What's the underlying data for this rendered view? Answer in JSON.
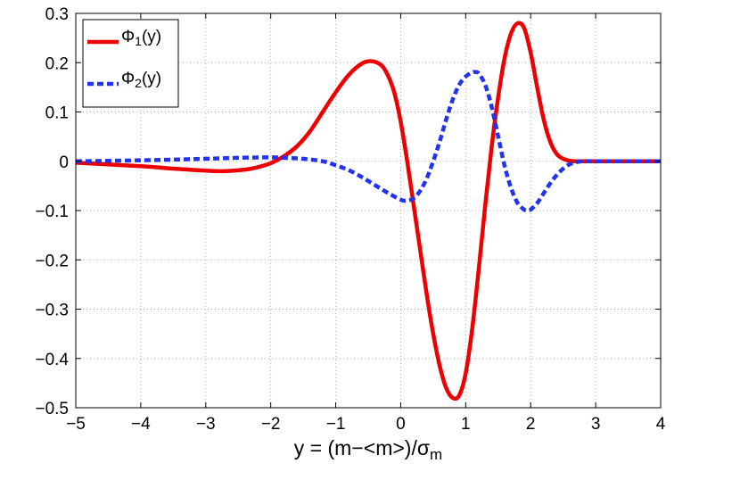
{
  "chart_data": {
    "type": "line",
    "title": "",
    "xlabel": {
      "main": "y = (m−<m>)/σ",
      "sub": "m"
    },
    "ylabel": "",
    "xlim": [
      -5,
      4
    ],
    "ylim": [
      -0.5,
      0.3
    ],
    "grid": true,
    "legend_position": "top-left",
    "x_ticks": [
      -5,
      -4,
      -3,
      -2,
      -1,
      0,
      1,
      2,
      3,
      4
    ],
    "x_tick_labels": [
      "−5",
      "−4",
      "−3",
      "−2",
      "−1",
      "0",
      "1",
      "2",
      "3",
      "4"
    ],
    "y_ticks": [
      0.3,
      0.2,
      0.1,
      0,
      -0.1,
      -0.2,
      -0.3,
      -0.4,
      -0.5
    ],
    "y_tick_labels": [
      "0.3",
      "0.2",
      "0.1",
      "0",
      "−0.1",
      "−0.2",
      "−0.3",
      "−0.4",
      "−0.5"
    ],
    "series": [
      {
        "name": {
          "main": "Φ",
          "sub": "1",
          "suffix": "(y)"
        },
        "color": "#ee0000",
        "style": "solid",
        "x": [
          -5,
          -4,
          -3.5,
          -3,
          -2.7,
          -2.4,
          -2.2,
          -2,
          -1.8,
          -1.6,
          -1.4,
          -1.2,
          -1,
          -0.8,
          -0.6,
          -0.45,
          -0.3,
          -0.2,
          -0.1,
          0,
          0.1,
          0.2,
          0.3,
          0.4,
          0.5,
          0.6,
          0.7,
          0.8,
          0.9,
          1.0,
          1.1,
          1.2,
          1.3,
          1.4,
          1.5,
          1.6,
          1.7,
          1.8,
          1.9,
          2.0,
          2.1,
          2.2,
          2.3,
          2.4,
          2.5,
          2.6,
          2.7,
          2.8,
          3,
          4
        ],
        "y": [
          -0.003,
          -0.01,
          -0.015,
          -0.019,
          -0.02,
          -0.017,
          -0.012,
          -0.004,
          0.01,
          0.03,
          0.06,
          0.1,
          0.14,
          0.175,
          0.198,
          0.203,
          0.195,
          0.175,
          0.14,
          0.08,
          0.0,
          -0.09,
          -0.18,
          -0.27,
          -0.35,
          -0.415,
          -0.46,
          -0.48,
          -0.475,
          -0.43,
          -0.34,
          -0.22,
          -0.09,
          0.03,
          0.13,
          0.21,
          0.26,
          0.28,
          0.27,
          0.22,
          0.15,
          0.085,
          0.04,
          0.015,
          0.005,
          0.001,
          0.0,
          0.0,
          0.0,
          0.0
        ]
      },
      {
        "name": {
          "main": "Φ",
          "sub": "2",
          "suffix": "(y)"
        },
        "color": "#2233ee",
        "style": "dashed",
        "x": [
          -5,
          -4,
          -3,
          -2.5,
          -2,
          -1.8,
          -1.5,
          -1.2,
          -1,
          -0.8,
          -0.6,
          -0.4,
          -0.2,
          0,
          0.1,
          0.2,
          0.3,
          0.4,
          0.5,
          0.6,
          0.7,
          0.8,
          0.9,
          1.0,
          1.1,
          1.15,
          1.2,
          1.3,
          1.4,
          1.5,
          1.6,
          1.7,
          1.8,
          1.9,
          1.95,
          2.0,
          2.1,
          2.2,
          2.3,
          2.4,
          2.5,
          2.6,
          2.7,
          2.8,
          3,
          4
        ],
        "y": [
          0.0,
          0.002,
          0.005,
          0.007,
          0.008,
          0.007,
          0.005,
          0.0,
          -0.008,
          -0.018,
          -0.032,
          -0.048,
          -0.064,
          -0.078,
          -0.08,
          -0.075,
          -0.06,
          -0.035,
          0.0,
          0.04,
          0.085,
          0.125,
          0.155,
          0.172,
          0.18,
          0.181,
          0.178,
          0.155,
          0.11,
          0.05,
          -0.01,
          -0.055,
          -0.085,
          -0.098,
          -0.1,
          -0.098,
          -0.085,
          -0.065,
          -0.045,
          -0.028,
          -0.015,
          -0.006,
          -0.002,
          0.0,
          0.0,
          0.0
        ]
      }
    ]
  }
}
